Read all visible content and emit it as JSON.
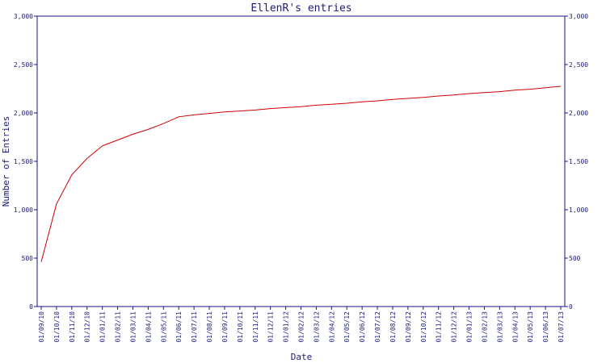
{
  "chart_data": {
    "type": "line",
    "title": "EllenR's entries",
    "xlabel": "Date",
    "ylabel": "Number of Entries",
    "ylim": [
      0,
      3000
    ],
    "y_ticks": [
      "0",
      "500",
      "1,000",
      "1,500",
      "2,000",
      "2,500",
      "3,000"
    ],
    "y_tick_values": [
      0,
      500,
      1000,
      1500,
      2000,
      2500,
      3000
    ],
    "right_axis": true,
    "grid": false,
    "categories": [
      "01/09/10",
      "01/10/10",
      "01/11/10",
      "01/12/10",
      "01/01/11",
      "01/02/11",
      "01/03/11",
      "01/04/11",
      "01/05/11",
      "01/06/11",
      "01/07/11",
      "01/08/11",
      "01/09/11",
      "01/10/11",
      "01/11/11",
      "01/12/11",
      "01/01/12",
      "01/02/12",
      "01/03/12",
      "01/04/12",
      "01/05/12",
      "01/06/12",
      "01/07/12",
      "01/08/12",
      "01/09/12",
      "01/10/12",
      "01/11/12",
      "01/12/12",
      "01/01/13",
      "01/02/13",
      "01/03/13",
      "01/04/13",
      "01/05/13",
      "01/06/13",
      "01/07/13"
    ],
    "series": [
      {
        "color": "#cc0000",
        "x": [
          "01/09/10",
          "01/10/10",
          "01/11/10",
          "01/12/10",
          "01/01/11",
          "01/02/11",
          "01/03/11",
          "01/04/11",
          "01/05/11",
          "01/06/11",
          "01/07/11",
          "01/08/11",
          "01/09/11",
          "01/10/11",
          "01/11/11",
          "01/12/11",
          "01/01/12",
          "01/02/12",
          "01/03/12",
          "01/04/12",
          "01/05/12",
          "01/06/12",
          "01/07/12",
          "01/08/12",
          "01/09/12",
          "01/10/12",
          "01/11/12",
          "01/12/12",
          "01/01/13",
          "01/02/13",
          "01/03/13",
          "01/04/13",
          "01/05/13",
          "01/06/13",
          "01/07/13"
        ],
        "values": [
          460,
          1060,
          1360,
          1530,
          1660,
          1720,
          1780,
          1830,
          1890,
          1960,
          1980,
          1995,
          2010,
          2020,
          2030,
          2045,
          2055,
          2065,
          2080,
          2090,
          2100,
          2115,
          2125,
          2140,
          2150,
          2160,
          2175,
          2185,
          2200,
          2210,
          2220,
          2235,
          2245,
          2260,
          2275
        ]
      }
    ]
  }
}
